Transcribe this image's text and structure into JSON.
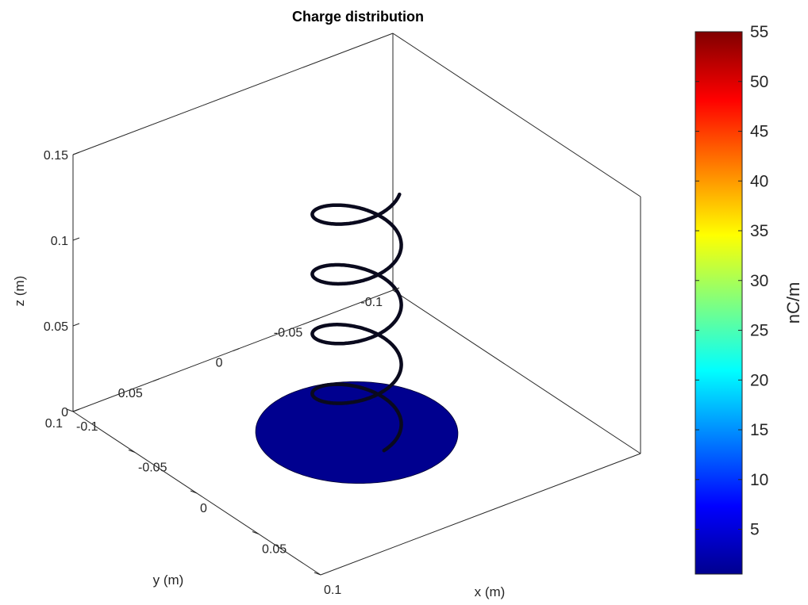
{
  "chart_data": {
    "type": "3d-surface-line",
    "title": "Charge distribution",
    "xlabel": "x (m)",
    "ylabel": "y (m)",
    "zlabel": "z (m)",
    "x_ticks": [
      "-0.1",
      "-0.05",
      "0",
      "0.05",
      "0.1"
    ],
    "y_ticks": [
      "-0.1",
      "-0.05",
      "0",
      "0.05",
      "0.1"
    ],
    "z_ticks": [
      "0",
      "0.05",
      "0.1",
      "0.15"
    ],
    "xlim": [
      -0.1,
      0.1
    ],
    "ylim": [
      -0.1,
      0.1
    ],
    "zlim": [
      0,
      0.15
    ],
    "colormap": "jet",
    "colorbar": {
      "label": "nC/m",
      "range": [
        0.5,
        55
      ],
      "ticks": [
        "5",
        "10",
        "15",
        "20",
        "25",
        "30",
        "35",
        "40",
        "45",
        "50",
        "55"
      ]
    },
    "ground_plane": {
      "shape": "disk",
      "radius": 0.05,
      "z": 0,
      "color": "#00008f"
    },
    "helix": {
      "radius": 0.022,
      "turns": 4.1,
      "z_start": 0,
      "z_end": 0.143,
      "center": [
        0,
        0
      ],
      "color": "#0a0a1e"
    }
  }
}
